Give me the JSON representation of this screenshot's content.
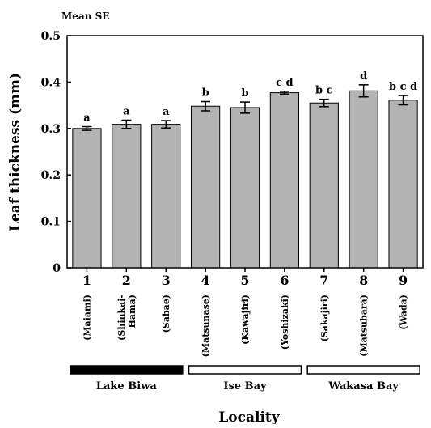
{
  "chart_data": {
    "type": "bar",
    "note": "Mean SE",
    "ylabel": "Leaf thickness (mm)",
    "xlabel": "Locality",
    "ylim": [
      0,
      0.5
    ],
    "yticks": [
      "0",
      "0.1",
      "0.2",
      "0.3",
      "0.4",
      "0.5"
    ],
    "categories": [
      "1",
      "2",
      "3",
      "4",
      "5",
      "6",
      "7",
      "8",
      "9"
    ],
    "locality_names": [
      [
        "(Maiami)"
      ],
      [
        "(Shinkai-",
        "Hama)"
      ],
      [
        "(Sabae)"
      ],
      [
        "(Matsunase)"
      ],
      [
        "(Kawajiri)"
      ],
      [
        "(Yoshizaki)"
      ],
      [
        "(Sakajiri)"
      ],
      [
        "(Matsubara)"
      ],
      [
        "(Wada)"
      ]
    ],
    "values": [
      0.3,
      0.309,
      0.309,
      0.348,
      0.345,
      0.377,
      0.355,
      0.381,
      0.361
    ],
    "errors": [
      0.004,
      0.009,
      0.008,
      0.01,
      0.012,
      0.003,
      0.008,
      0.013,
      0.01
    ],
    "significance": [
      "a",
      "a",
      "a",
      "b",
      "b",
      "c d",
      "b c",
      "d",
      "b c d"
    ],
    "bar_color": "#b3b3b3",
    "groups": [
      {
        "label": "Lake Biwa",
        "from": 0,
        "to": 2,
        "fill": "#000000"
      },
      {
        "label": "Ise Bay",
        "from": 3,
        "to": 5,
        "fill": "#ffffff"
      },
      {
        "label": "Wakasa Bay",
        "from": 6,
        "to": 8,
        "fill": "#ffffff"
      }
    ]
  }
}
